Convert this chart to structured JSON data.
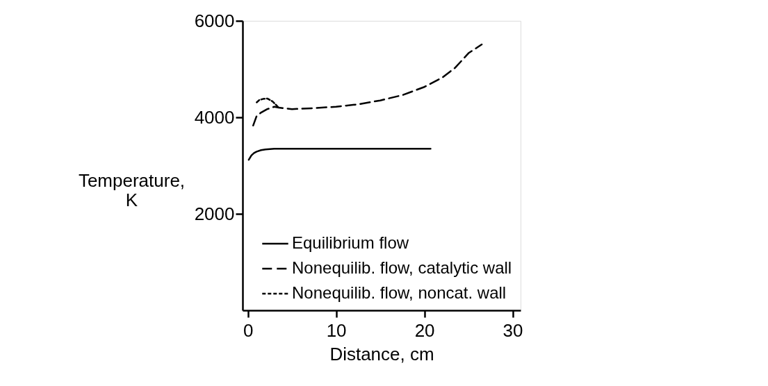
{
  "chart_data": {
    "type": "line",
    "xlabel": "Distance, cm",
    "ylabel": "Temperature,\nK",
    "xlim": [
      -0.6,
      30.9
    ],
    "ylim": [
      0,
      6000
    ],
    "xticks": [
      0,
      10,
      20,
      30
    ],
    "yticks": [
      2000,
      4000,
      6000
    ],
    "grid": false,
    "legend": "bottom right",
    "series": [
      {
        "name": "Equilibrium flow",
        "color": "#000000",
        "line_style": "solid",
        "x": [
          0.1,
          0.2,
          0.4,
          0.7,
          1.0,
          1.5,
          2.0,
          3.0,
          5.0,
          10.0,
          15.0,
          20.7
        ],
        "values": [
          3120,
          3150,
          3210,
          3260,
          3290,
          3320,
          3335,
          3350,
          3350,
          3350,
          3350,
          3350
        ]
      },
      {
        "name": "Nonequilib. flow, catalytic wall",
        "color": "#000000",
        "line_style": "dashed",
        "x": [
          0.6,
          1.0,
          1.5,
          2.2,
          3.0,
          3.5,
          5.0,
          7.5,
          10.0,
          12.5,
          15.0,
          17.5,
          20.0,
          22.0,
          23.5,
          25.0,
          26.5
        ],
        "values": [
          3830,
          4030,
          4100,
          4170,
          4220,
          4200,
          4170,
          4190,
          4220,
          4270,
          4350,
          4460,
          4630,
          4820,
          5030,
          5330,
          5510
        ]
      },
      {
        "name": "Nonequilib. flow, noncat. wall",
        "color": "#000000",
        "line_style": "dotted",
        "x": [
          1.0,
          1.3,
          1.7,
          2.2,
          2.8,
          3.5
        ],
        "values": [
          4310,
          4360,
          4380,
          4390,
          4330,
          4200
        ]
      }
    ]
  }
}
